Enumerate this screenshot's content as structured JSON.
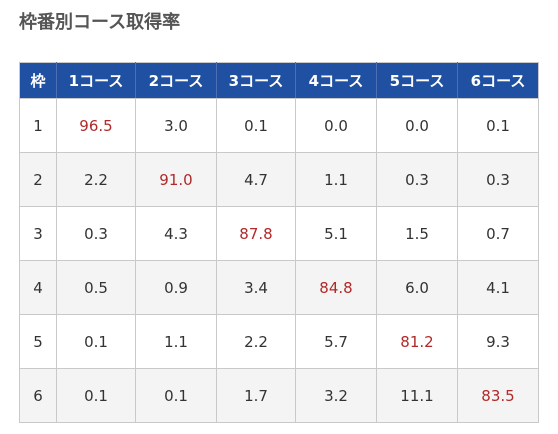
{
  "title": "枠番別コース取得率",
  "table": {
    "headers": [
      "枠",
      "1コース",
      "2コース",
      "3コース",
      "4コース",
      "5コース",
      "6コース"
    ],
    "rows": [
      {
        "waku": "1",
        "values": [
          "96.5",
          "3.0",
          "0.1",
          "0.0",
          "0.0",
          "0.1"
        ]
      },
      {
        "waku": "2",
        "values": [
          "2.2",
          "91.0",
          "4.7",
          "1.1",
          "0.3",
          "0.3"
        ]
      },
      {
        "waku": "3",
        "values": [
          "0.3",
          "4.3",
          "87.8",
          "5.1",
          "1.5",
          "0.7"
        ]
      },
      {
        "waku": "4",
        "values": [
          "0.5",
          "0.9",
          "3.4",
          "84.8",
          "6.0",
          "4.1"
        ]
      },
      {
        "waku": "5",
        "values": [
          "0.1",
          "1.1",
          "2.2",
          "5.7",
          "81.2",
          "9.3"
        ]
      },
      {
        "waku": "6",
        "values": [
          "0.1",
          "0.1",
          "1.7",
          "3.2",
          "11.1",
          "83.5"
        ]
      }
    ]
  },
  "colors": {
    "header_bg": "#1f50a2",
    "highlight_text": "#b02a2a",
    "stripe_bg": "#f4f4f4"
  }
}
